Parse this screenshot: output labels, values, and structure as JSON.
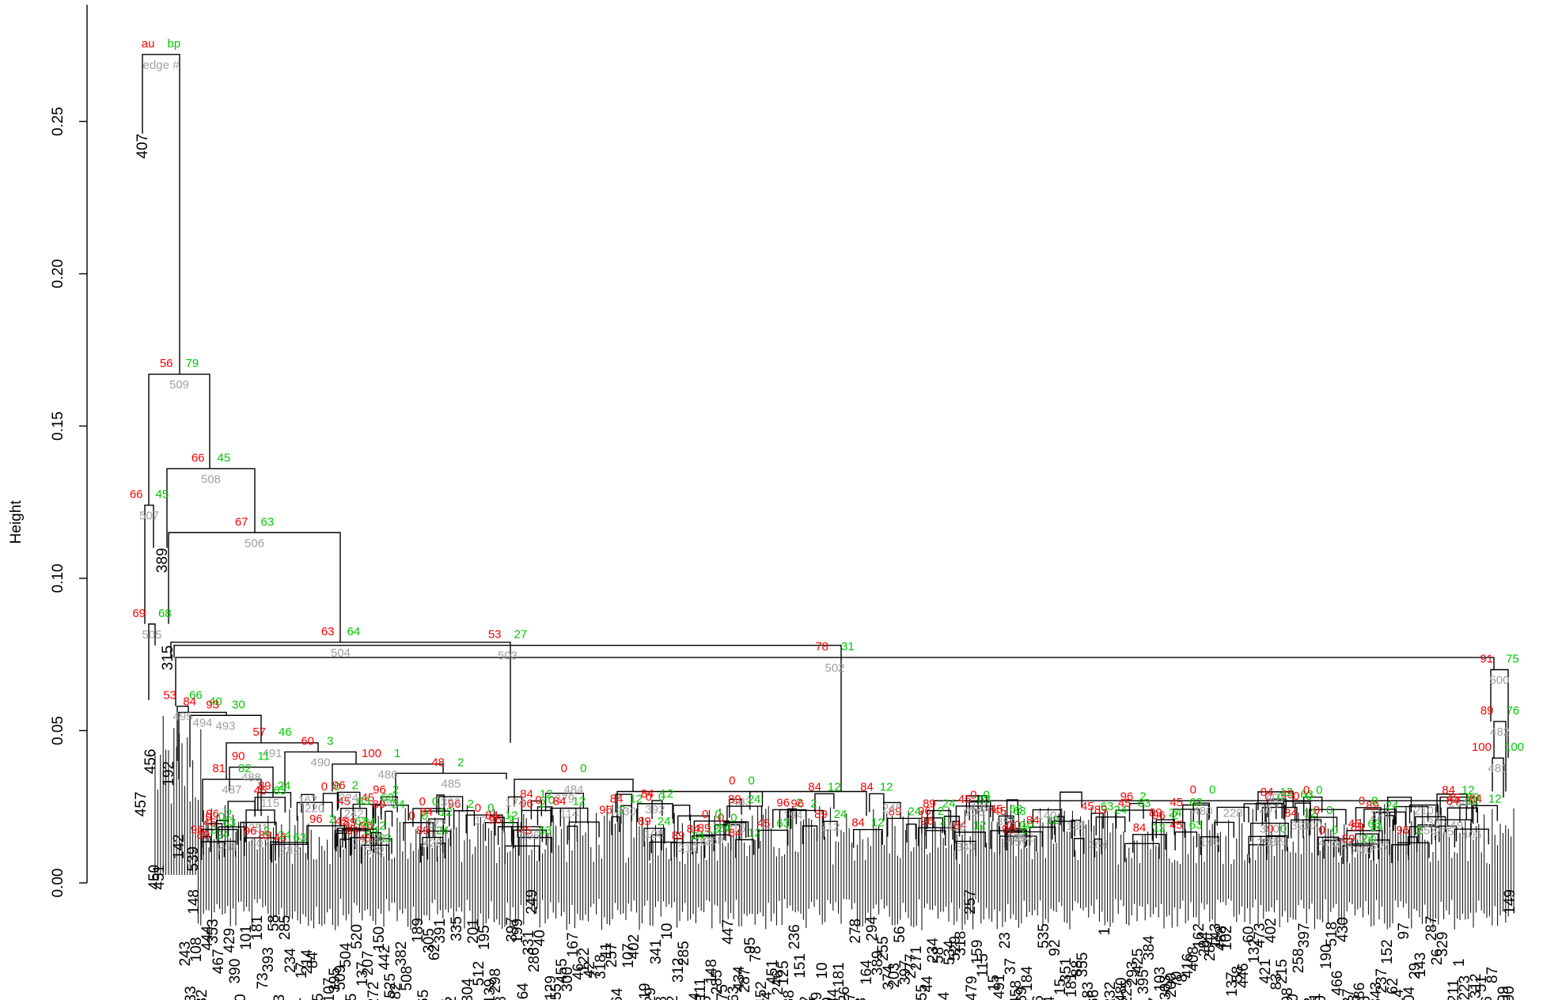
{
  "chart_data": {
    "type": "dendrogram",
    "ylabel": "Height",
    "ylim": [
      0,
      0.28
    ],
    "yticks": [
      0.0,
      0.05,
      0.1,
      0.15,
      0.2,
      0.25
    ],
    "ytick_labels": [
      "0.00",
      "0.05",
      "0.10",
      "0.15",
      "0.20",
      "0.25"
    ],
    "legend": {
      "au": "au",
      "bp": "bp",
      "edge": "edge #"
    },
    "colors": {
      "au": "#ff0000",
      "bp": "#00c800",
      "edge": "#a0a0a0",
      "tree": "#000000"
    },
    "leaves": [
      {
        "id": "leaf-407",
        "label": "407",
        "x": 180,
        "y": 0.246
      },
      {
        "id": "leaf-389",
        "label": "389",
        "x": 205,
        "y": 0.11
      },
      {
        "id": "leaf-315",
        "label": "315",
        "x": 212,
        "y": 0.078
      },
      {
        "id": "leaf-456",
        "label": "456",
        "x": 190,
        "y": 0.044
      },
      {
        "id": "leaf-457",
        "label": "457",
        "x": 178,
        "y": 0.03
      },
      {
        "id": "leaf-192",
        "label": "192",
        "x": 213,
        "y": 0.04
      },
      {
        "id": "leaf-142",
        "label": "142",
        "x": 226,
        "y": 0.016
      },
      {
        "id": "leaf-539",
        "label": "539",
        "x": 244,
        "y": 0.012
      },
      {
        "id": "leaf-450",
        "label": "450",
        "x": 195,
        "y": 0.006
      },
      {
        "id": "leaf-451",
        "label": "451",
        "x": 201,
        "y": 0.006
      },
      {
        "id": "leaf-148",
        "label": "148",
        "x": 245,
        "y": 0.0
      },
      {
        "id": "leaf-249",
        "label": "249",
        "x": 672,
        "y": 0.0
      },
      {
        "id": "leaf-257",
        "label": "257",
        "x": 1226,
        "y": 0.0
      },
      {
        "id": "leaf-149",
        "label": "149",
        "x": 1908,
        "y": 0.0
      }
    ],
    "nodes": [
      {
        "id": "node-edge-510",
        "x0": 180,
        "x1": 227,
        "y": 0.272,
        "au": "au",
        "bp": "bp",
        "edge": "edge #"
      },
      {
        "id": "node-509",
        "x0": 188,
        "x1": 265,
        "y": 0.167,
        "au": "56",
        "bp": "79",
        "edge": "509"
      },
      {
        "id": "node-508",
        "x0": 211,
        "x1": 322,
        "y": 0.136,
        "au": "66",
        "bp": "45",
        "edge": "508"
      },
      {
        "id": "node-506",
        "x0": 213,
        "x1": 430,
        "y": 0.115,
        "au": "67",
        "bp": "63",
        "edge": "506"
      },
      {
        "id": "node-507",
        "x0": 183,
        "x1": 194,
        "y": 0.124,
        "au": "66",
        "bp": "45",
        "edge": "507"
      },
      {
        "id": "node-505",
        "x0": 188,
        "x1": 196,
        "y": 0.085,
        "au": "69",
        "bp": "68",
        "edge": "505"
      },
      {
        "id": "node-504",
        "x0": 216,
        "x1": 645,
        "y": 0.079,
        "au": "63",
        "bp": "64",
        "edge": "504"
      },
      {
        "id": "node-503",
        "x0": 220,
        "x1": 1063,
        "y": 0.078,
        "au": "53",
        "bp": "27",
        "edge": "503"
      },
      {
        "id": "node-502",
        "x0": 222,
        "x1": 1888,
        "y": 0.074,
        "au": "78",
        "bp": "31",
        "edge": "502"
      },
      {
        "id": "node-500",
        "x0": 1884,
        "x1": 1906,
        "y": 0.07,
        "au": "91",
        "bp": "75",
        "edge": "500"
      },
      {
        "id": "node-495",
        "x0": 224,
        "x1": 238,
        "y": 0.058,
        "au": "53",
        "bp": "66",
        "edge": "495"
      },
      {
        "id": "node-494",
        "x0": 226,
        "x1": 286,
        "y": 0.056,
        "au": "84",
        "bp": "40",
        "edge": "494"
      },
      {
        "id": "node-493",
        "x0": 240,
        "x1": 330,
        "y": 0.055,
        "au": "93",
        "bp": "30",
        "edge": "493"
      },
      {
        "id": "node-491",
        "x0": 286,
        "x1": 402,
        "y": 0.046,
        "au": "57",
        "bp": "46",
        "edge": "491"
      },
      {
        "id": "node-490",
        "x0": 360,
        "x1": 450,
        "y": 0.043,
        "au": "60",
        "bp": "3",
        "edge": "490"
      },
      {
        "id": "node-488",
        "x0": 290,
        "x1": 345,
        "y": 0.038,
        "au": "90",
        "bp": "11",
        "edge": "488"
      },
      {
        "id": "node-487",
        "x0": 256,
        "x1": 330,
        "y": 0.034,
        "au": "81",
        "bp": "82",
        "edge": "487"
      },
      {
        "id": "node-486",
        "x0": 420,
        "x1": 560,
        "y": 0.039,
        "au": "100",
        "bp": "1",
        "edge": "486"
      },
      {
        "id": "node-485",
        "x0": 500,
        "x1": 640,
        "y": 0.036,
        "au": "48",
        "bp": "2",
        "edge": "485"
      },
      {
        "id": "node-484",
        "x0": 650,
        "x1": 800,
        "y": 0.034,
        "au": "0",
        "bp": "0",
        "edge": "484"
      },
      {
        "id": "node-483",
        "x0": 780,
        "x1": 1095,
        "y": 0.03,
        "au": "0",
        "bp": "0",
        "edge": "483"
      },
      {
        "id": "node-480",
        "x0": 1180,
        "x1": 1860,
        "y": 0.027,
        "au": "0",
        "bp": "0",
        "edge": "480"
      },
      {
        "id": "node-482",
        "x0": 1888,
        "x1": 1903,
        "y": 0.053,
        "au": "89",
        "bp": "76",
        "edge": "482"
      },
      {
        "id": "node-481",
        "x0": 1886,
        "x1": 1900,
        "y": 0.041,
        "au": "100",
        "bp": "100",
        "edge": "481"
      }
    ]
  }
}
